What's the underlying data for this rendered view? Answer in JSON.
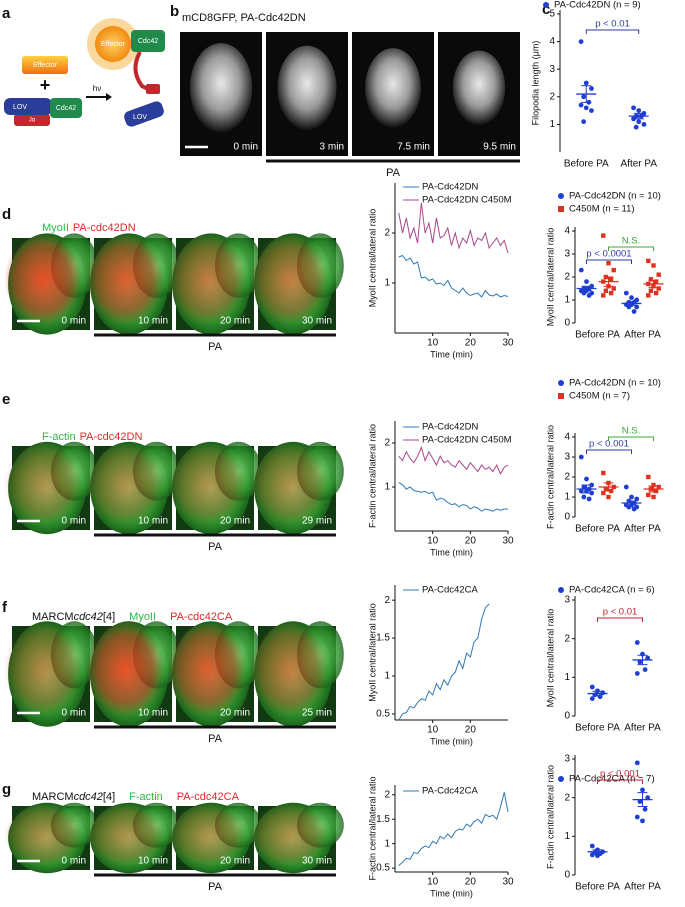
{
  "panel_labels": [
    "a",
    "b",
    "c",
    "d",
    "e",
    "f",
    "g"
  ],
  "panel_a": {
    "labels": [
      "Effector",
      "LOV",
      "Cdc42",
      "Jα",
      "hν",
      "Effector",
      "Cdc42",
      "LOV"
    ]
  },
  "panel_b": {
    "title": "mCD8GFP, PA-Cdc42DN",
    "times": [
      "0 min",
      "3 min",
      "7.5 min",
      "9.5 min"
    ],
    "bar_label": "PA"
  },
  "panel_d": {
    "channels": [
      "MyoII",
      "PA-cdc42DN"
    ],
    "times": [
      "0 min",
      "10 min",
      "20 min",
      "30 min"
    ],
    "bar_label": "PA"
  },
  "panel_e": {
    "channels": [
      "F-actin",
      "PA-cdc42DN"
    ],
    "times": [
      "0 min",
      "10 min",
      "20 min",
      "29 min"
    ],
    "bar_label": "PA"
  },
  "panel_f": {
    "genotype": [
      "MARCM",
      "cdc42",
      "[4]"
    ],
    "channels": [
      "MyoII",
      "PA-cdc42CA"
    ],
    "times": [
      "0 min",
      "10 min",
      "20 min",
      "25 min"
    ],
    "bar_label": "PA"
  },
  "panel_g": {
    "genotype": [
      "MARCM",
      "cdc42",
      "[4]"
    ],
    "channels": [
      "F-actin",
      "PA-cdc42CA"
    ],
    "times": [
      "0 min",
      "10 min",
      "20 min",
      "30 min"
    ],
    "bar_label": "PA"
  },
  "chart_data": [
    {
      "type": "strip",
      "ylabel": "Filopodia length (μm)",
      "categories": [
        "Before PA",
        "After PA"
      ],
      "ylim": [
        0,
        5
      ],
      "yticks": [
        1,
        2,
        3,
        4,
        5
      ],
      "series": [
        {
          "name": "PA-Cdc42DN (n = 9)",
          "color": "#1f3fd1",
          "marker": "circle",
          "values": [
            [
              4.0,
              2.5,
              2.3,
              2.0,
              1.8,
              1.7,
              1.6,
              1.5,
              1.1
            ],
            [
              1.6,
              1.5,
              1.4,
              1.3,
              1.3,
              1.2,
              1.1,
              1.0,
              0.9
            ]
          ],
          "means": [
            2.1,
            1.3
          ],
          "sems": [
            0.3,
            0.1
          ]
        }
      ],
      "annotations": [
        {
          "text": "p < 0.01",
          "color": "#2b3aa0",
          "series": 0
        }
      ]
    },
    {
      "type": "line",
      "ylabel": "MyoII central/lateral ratio",
      "xlabel": "Time (min)",
      "xlim": [
        0,
        30
      ],
      "xticks": [
        10,
        20,
        30
      ],
      "ylim": [
        0,
        3
      ],
      "yticks": [
        1,
        2
      ],
      "x": [
        1,
        2,
        3,
        4,
        5,
        6,
        7,
        8,
        9,
        10,
        11,
        12,
        13,
        14,
        15,
        16,
        17,
        18,
        19,
        20,
        21,
        22,
        23,
        24,
        25,
        26,
        27,
        28,
        29,
        30
      ],
      "series": [
        {
          "name": "PA-Cdc42DN",
          "color": "#2f7ab8",
          "values": [
            1.52,
            1.55,
            1.45,
            1.5,
            1.38,
            1.42,
            1.1,
            1.12,
            1.05,
            1.08,
            0.98,
            1.0,
            0.95,
            1.05,
            0.9,
            0.85,
            0.8,
            0.9,
            0.8,
            0.75,
            0.78,
            0.8,
            0.72,
            0.85,
            0.76,
            0.74,
            0.78,
            0.72,
            0.75,
            0.73
          ]
        },
        {
          "name": "PA-Cdc42DN C450M",
          "color": "#a8468c",
          "values": [
            2.4,
            2.0,
            2.3,
            1.9,
            2.1,
            1.8,
            2.6,
            2.0,
            2.2,
            1.8,
            2.3,
            1.9,
            1.95,
            2.1,
            1.75,
            2.0,
            1.7,
            1.9,
            1.8,
            2.05,
            1.75,
            1.9,
            1.85,
            2.0,
            1.7,
            1.8,
            1.9,
            1.75,
            1.85,
            1.6
          ]
        }
      ]
    },
    {
      "type": "strip",
      "ylabel": "MyoII central/lateral ratio",
      "categories": [
        "Before PA",
        "After PA"
      ],
      "ylim": [
        0,
        4
      ],
      "yticks": [
        0,
        1,
        2,
        3,
        4
      ],
      "series": [
        {
          "name": "PA-Cdc42DN (n = 10)",
          "color": "#1f3fd1",
          "marker": "circle",
          "values": [
            [
              2.3,
              1.8,
              1.6,
              1.5,
              1.5,
              1.4,
              1.4,
              1.3,
              1.3,
              1.2
            ],
            [
              1.3,
              1.1,
              1.0,
              0.9,
              0.9,
              0.8,
              0.8,
              0.7,
              0.7,
              0.5
            ]
          ],
          "means": [
            1.5,
            0.85
          ],
          "sems": [
            0.1,
            0.08
          ]
        },
        {
          "name": "C450M (n = 11)",
          "color": "#e0301e",
          "marker": "square",
          "values": [
            [
              3.8,
              2.6,
              2.3,
              2.0,
              1.9,
              1.8,
              1.6,
              1.5,
              1.4,
              1.3,
              1.2
            ],
            [
              2.7,
              2.5,
              2.1,
              1.9,
              1.8,
              1.7,
              1.6,
              1.5,
              1.4,
              1.3,
              1.2
            ]
          ],
          "means": [
            1.8,
            1.7
          ],
          "sems": [
            0.2,
            0.15
          ]
        }
      ],
      "annotations": [
        {
          "text": "p < 0.0001",
          "color": "#2b3aa0",
          "series": 0
        },
        {
          "text": "N.S.",
          "color": "#38a838",
          "series": 1
        }
      ]
    },
    {
      "type": "line",
      "ylabel": "F-actin central/lateral ratio",
      "xlabel": "Time (min)",
      "xlim": [
        0,
        30
      ],
      "xticks": [
        10,
        20,
        30
      ],
      "ylim": [
        0,
        2.5
      ],
      "yticks": [
        1,
        2
      ],
      "x": [
        1,
        2,
        3,
        4,
        5,
        6,
        7,
        8,
        9,
        10,
        11,
        12,
        13,
        14,
        15,
        16,
        17,
        18,
        19,
        20,
        21,
        22,
        23,
        24,
        25,
        26,
        27,
        28,
        29,
        30
      ],
      "series": [
        {
          "name": "PA-Cdc42DN",
          "color": "#2f7ab8",
          "values": [
            1.1,
            1.05,
            0.95,
            1.0,
            0.92,
            0.9,
            0.88,
            0.9,
            0.85,
            0.88,
            0.7,
            0.75,
            0.72,
            0.65,
            0.6,
            0.62,
            0.55,
            0.6,
            0.58,
            0.5,
            0.55,
            0.52,
            0.45,
            0.5,
            0.48,
            0.45,
            0.5,
            0.47,
            0.5,
            0.5
          ]
        },
        {
          "name": "PA-Cdc42DN C450M",
          "color": "#a8468c",
          "values": [
            1.7,
            1.6,
            1.8,
            1.65,
            1.55,
            1.7,
            1.9,
            1.6,
            1.8,
            1.65,
            1.5,
            1.7,
            1.55,
            1.6,
            1.5,
            1.45,
            1.6,
            1.5,
            1.4,
            1.55,
            1.45,
            1.35,
            1.5,
            1.4,
            1.45,
            1.35,
            1.5,
            1.3,
            1.45,
            1.5
          ]
        }
      ]
    },
    {
      "type": "strip",
      "ylabel": "F-actin central/lateral ratio",
      "categories": [
        "Before PA",
        "After PA"
      ],
      "ylim": [
        0,
        4
      ],
      "yticks": [
        0,
        1,
        2,
        3,
        4
      ],
      "series": [
        {
          "name": "PA-Cdc42DN (n = 10)",
          "color": "#1f3fd1",
          "marker": "circle",
          "values": [
            [
              3.0,
              1.9,
              1.6,
              1.5,
              1.4,
              1.3,
              1.3,
              1.2,
              1.0,
              0.9
            ],
            [
              1.5,
              1.0,
              0.9,
              0.8,
              0.7,
              0.6,
              0.6,
              0.5,
              0.5,
              0.4
            ]
          ],
          "means": [
            1.4,
            0.7
          ],
          "sems": [
            0.2,
            0.1
          ]
        },
        {
          "name": "C450M (n = 7)",
          "color": "#e0301e",
          "marker": "square",
          "values": [
            [
              2.2,
              1.7,
              1.5,
              1.4,
              1.3,
              1.2,
              1.0
            ],
            [
              2.0,
              1.6,
              1.5,
              1.4,
              1.3,
              1.1,
              1.0
            ]
          ],
          "means": [
            1.5,
            1.4
          ],
          "sems": [
            0.2,
            0.15
          ]
        }
      ],
      "annotations": [
        {
          "text": "p < 0.001",
          "color": "#2b3aa0",
          "series": 0
        },
        {
          "text": "N.S.",
          "color": "#38a838",
          "series": 1
        }
      ]
    },
    {
      "type": "line",
      "ylabel": "MyoII central/lateral ratio",
      "xlabel": "Time (min)",
      "xlim": [
        0,
        30
      ],
      "xticks": [
        10,
        20
      ],
      "ylim": [
        0.42,
        2.2
      ],
      "yticks": [
        0.5,
        1,
        1.5,
        2
      ],
      "x": [
        1,
        2,
        3,
        4,
        5,
        6,
        7,
        8,
        9,
        10,
        11,
        12,
        13,
        14,
        15,
        16,
        17,
        18,
        19,
        20,
        21,
        22,
        23,
        24,
        25
      ],
      "series": [
        {
          "name": "PA-Cdc42CA",
          "color": "#2f7ab8",
          "values": [
            0.42,
            0.5,
            0.52,
            0.6,
            0.58,
            0.65,
            0.7,
            0.68,
            0.8,
            0.75,
            0.9,
            0.82,
            0.95,
            0.88,
            1.0,
            1.05,
            1.2,
            1.1,
            1.3,
            1.25,
            1.45,
            1.5,
            1.75,
            1.9,
            1.95
          ]
        }
      ]
    },
    {
      "type": "strip",
      "ylabel": "MyoII central/lateral ratio",
      "categories": [
        "Before PA",
        "After PA"
      ],
      "ylim": [
        0,
        3
      ],
      "yticks": [
        0,
        1,
        2,
        3
      ],
      "series": [
        {
          "name": "PA-Cdc42CA (n = 6)",
          "color": "#1f3fd1",
          "marker": "circle",
          "values": [
            [
              0.75,
              0.65,
              0.6,
              0.55,
              0.5,
              0.45
            ],
            [
              1.9,
              1.6,
              1.5,
              1.4,
              1.2,
              1.1
            ]
          ],
          "means": [
            0.58,
            1.45
          ],
          "sems": [
            0.06,
            0.12
          ]
        }
      ],
      "annotations": [
        {
          "text": "p < 0.01",
          "color": "#c02030",
          "series": 0
        }
      ]
    },
    {
      "type": "line",
      "ylabel": "F-actin central/lateral ratio",
      "xlabel": "Time (min)",
      "xlim": [
        0,
        30
      ],
      "xticks": [
        10,
        20,
        30
      ],
      "ylim": [
        0.42,
        2.2
      ],
      "yticks": [
        0.5,
        1,
        1.5,
        2
      ],
      "x": [
        1,
        2,
        3,
        4,
        5,
        6,
        7,
        8,
        9,
        10,
        11,
        12,
        13,
        14,
        15,
        16,
        17,
        18,
        19,
        20,
        21,
        22,
        23,
        24,
        25,
        26,
        27,
        28,
        29,
        30
      ],
      "series": [
        {
          "name": "PA-Cdc42CA",
          "color": "#2f7ab8",
          "values": [
            0.55,
            0.62,
            0.7,
            0.68,
            0.82,
            0.8,
            0.9,
            0.95,
            0.92,
            1.05,
            1.0,
            1.15,
            1.1,
            1.2,
            1.12,
            1.25,
            1.3,
            1.28,
            1.4,
            1.35,
            1.45,
            1.5,
            1.42,
            1.6,
            1.55,
            1.58,
            1.5,
            1.75,
            2.05,
            1.65
          ]
        }
      ]
    },
    {
      "type": "strip",
      "ylabel": "F-actin central/lateral ratio",
      "categories": [
        "Before PA",
        "After PA"
      ],
      "ylim": [
        0,
        3
      ],
      "yticks": [
        0,
        1,
        2,
        3
      ],
      "series": [
        {
          "name": "PA-Cdc42CA (n = 7)",
          "color": "#1f3fd1",
          "marker": "circle",
          "values": [
            [
              0.75,
              0.65,
              0.6,
              0.58,
              0.55,
              0.52,
              0.5
            ],
            [
              2.9,
              2.2,
              2.0,
              1.9,
              1.7,
              1.5,
              1.4
            ]
          ],
          "means": [
            0.6,
            1.95
          ],
          "sems": [
            0.05,
            0.18
          ]
        }
      ],
      "annotations": [
        {
          "text": "p < 0.001",
          "color": "#c02030",
          "series": 0
        }
      ]
    }
  ]
}
